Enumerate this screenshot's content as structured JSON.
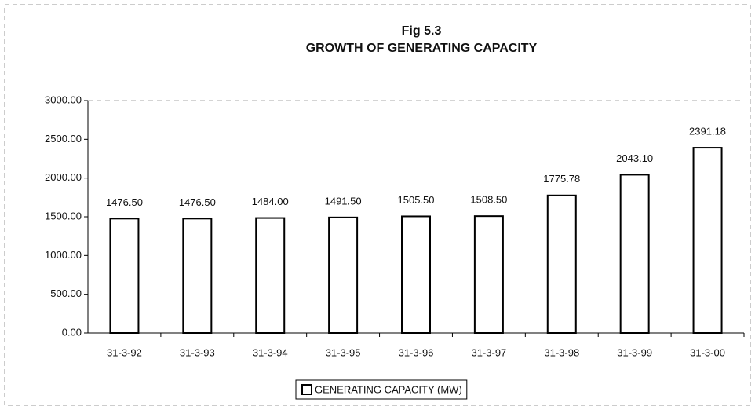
{
  "chart_data": {
    "type": "bar",
    "title": "Fig 5.3",
    "subtitle": "GROWTH OF GENERATING CAPACITY",
    "categories": [
      "31-3-92",
      "31-3-93",
      "31-3-94",
      "31-3-95",
      "31-3-96",
      "31-3-97",
      "31-3-98",
      "31-3-99",
      "31-3-00"
    ],
    "series": [
      {
        "name": "GENERATING CAPACITY (MW)",
        "color": "#ffffff",
        "values": [
          1476.5,
          1476.5,
          1484,
          1491.5,
          1505.5,
          1508.5,
          1775.78,
          2043.1,
          2391.18
        ],
        "value_labels": [
          "1476.50",
          "1476.50",
          "1484.00",
          "1491.50",
          "1505.50",
          "1508.50",
          "1775.78",
          "2043.10",
          "2391.18"
        ]
      }
    ],
    "ylim": [
      0,
      3000
    ],
    "yticks": [
      {
        "value": 0,
        "label": "0.00"
      },
      {
        "value": 500,
        "label": "500.00"
      },
      {
        "value": 1000,
        "label": "1000.00"
      },
      {
        "value": 1500,
        "label": "1500.00"
      },
      {
        "value": 2000,
        "label": "2000.00"
      },
      {
        "value": 2500,
        "label": "2500.00"
      },
      {
        "value": 3000,
        "label": "3000.00"
      }
    ],
    "grid": false,
    "legend": "bottom"
  }
}
